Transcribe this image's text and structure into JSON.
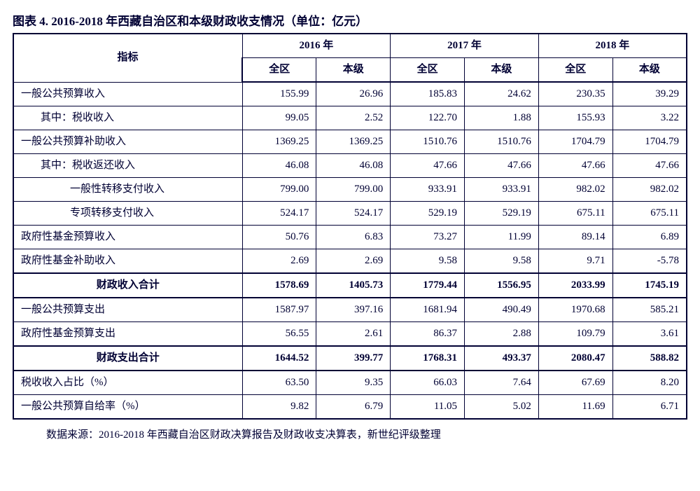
{
  "caption": "图表 4. 2016-2018 年西藏自治区和本级财政收支情况（单位：亿元）",
  "source": "数据来源：2016-2018 年西藏自治区财政决算报告及财政收支决算表，新世纪评级整理",
  "header": {
    "indicator": "指标",
    "years": [
      "2016 年",
      "2017 年",
      "2018 年"
    ],
    "sub": {
      "region": "全区",
      "level": "本级"
    }
  },
  "rows": [
    {
      "label": "一般公共预算收入",
      "indent": 0,
      "vals": [
        "155.99",
        "26.96",
        "185.83",
        "24.62",
        "230.35",
        "39.29"
      ]
    },
    {
      "label": "其中：税收收入",
      "indent": 1,
      "vals": [
        "99.05",
        "2.52",
        "122.70",
        "1.88",
        "155.93",
        "3.22"
      ]
    },
    {
      "label": "一般公共预算补助收入",
      "indent": 0,
      "vals": [
        "1369.25",
        "1369.25",
        "1510.76",
        "1510.76",
        "1704.79",
        "1704.79"
      ]
    },
    {
      "label": "其中：税收返还收入",
      "indent": 1,
      "vals": [
        "46.08",
        "46.08",
        "47.66",
        "47.66",
        "47.66",
        "47.66"
      ]
    },
    {
      "label": "一般性转移支付收入",
      "indent": 2,
      "vals": [
        "799.00",
        "799.00",
        "933.91",
        "933.91",
        "982.02",
        "982.02"
      ]
    },
    {
      "label": "专项转移支付收入",
      "indent": 2,
      "vals": [
        "524.17",
        "524.17",
        "529.19",
        "529.19",
        "675.11",
        "675.11"
      ]
    },
    {
      "label": "政府性基金预算收入",
      "indent": 0,
      "vals": [
        "50.76",
        "6.83",
        "73.27",
        "11.99",
        "89.14",
        "6.89"
      ]
    },
    {
      "label": "政府性基金补助收入",
      "indent": 0,
      "vals": [
        "2.69",
        "2.69",
        "9.58",
        "9.58",
        "9.71",
        "-5.78"
      ]
    },
    {
      "label": "财政收入合计",
      "bold": true,
      "thickTop": true,
      "thickBottom": true,
      "vals": [
        "1578.69",
        "1405.73",
        "1779.44",
        "1556.95",
        "2033.99",
        "1745.19"
      ]
    },
    {
      "label": "一般公共预算支出",
      "indent": 0,
      "vals": [
        "1587.97",
        "397.16",
        "1681.94",
        "490.49",
        "1970.68",
        "585.21"
      ]
    },
    {
      "label": "政府性基金预算支出",
      "indent": 0,
      "vals": [
        "56.55",
        "2.61",
        "86.37",
        "2.88",
        "109.79",
        "3.61"
      ]
    },
    {
      "label": "财政支出合计",
      "bold": true,
      "thickTop": true,
      "thickBottom": true,
      "vals": [
        "1644.52",
        "399.77",
        "1768.31",
        "493.37",
        "2080.47",
        "588.82"
      ]
    },
    {
      "label": "税收收入占比（%）",
      "indent": 0,
      "vals": [
        "63.50",
        "9.35",
        "66.03",
        "7.64",
        "67.69",
        "8.20"
      ]
    },
    {
      "label": "一般公共预算自给率（%）",
      "indent": 0,
      "vals": [
        "9.82",
        "6.79",
        "11.05",
        "5.02",
        "11.69",
        "6.71"
      ]
    }
  ],
  "colors": {
    "text": "#000033",
    "border": "#000033",
    "background": "#ffffff"
  }
}
